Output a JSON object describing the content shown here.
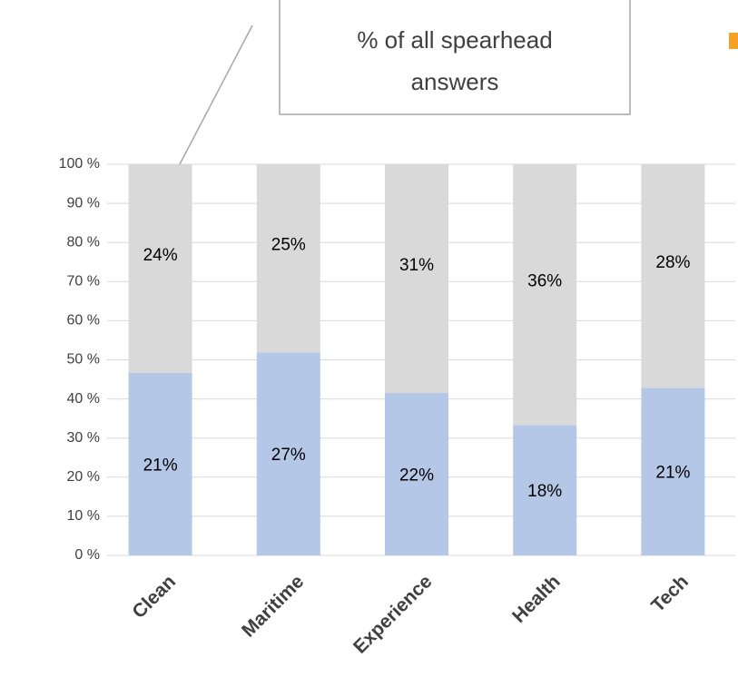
{
  "chart_data": {
    "type": "bar",
    "stacked": "percent",
    "categories": [
      "Clean",
      "Maritime",
      "Experience",
      "Health",
      "Tech"
    ],
    "series": [
      {
        "values": [
          21,
          27,
          22,
          18,
          21
        ],
        "labels": [
          "21%",
          "27%",
          "22%",
          "18%",
          "21%"
        ],
        "color": "#b4c7e7"
      },
      {
        "values": [
          24,
          25,
          31,
          36,
          28
        ],
        "labels": [
          "24%",
          "25%",
          "31%",
          "36%",
          "28%"
        ],
        "color": "#d9d9d9"
      }
    ],
    "yticks": [
      "0 %",
      "10 %",
      "20 %",
      "30 %",
      "40 %",
      "50 %",
      "60 %",
      "70 %",
      "80 %",
      "90 %",
      "100 %"
    ],
    "ylim": [
      0,
      100
    ],
    "grid": true,
    "callout": {
      "lines": [
        "% of all spearhead",
        "answers"
      ]
    }
  },
  "colors": {
    "corner_accent": "#f4a223"
  }
}
